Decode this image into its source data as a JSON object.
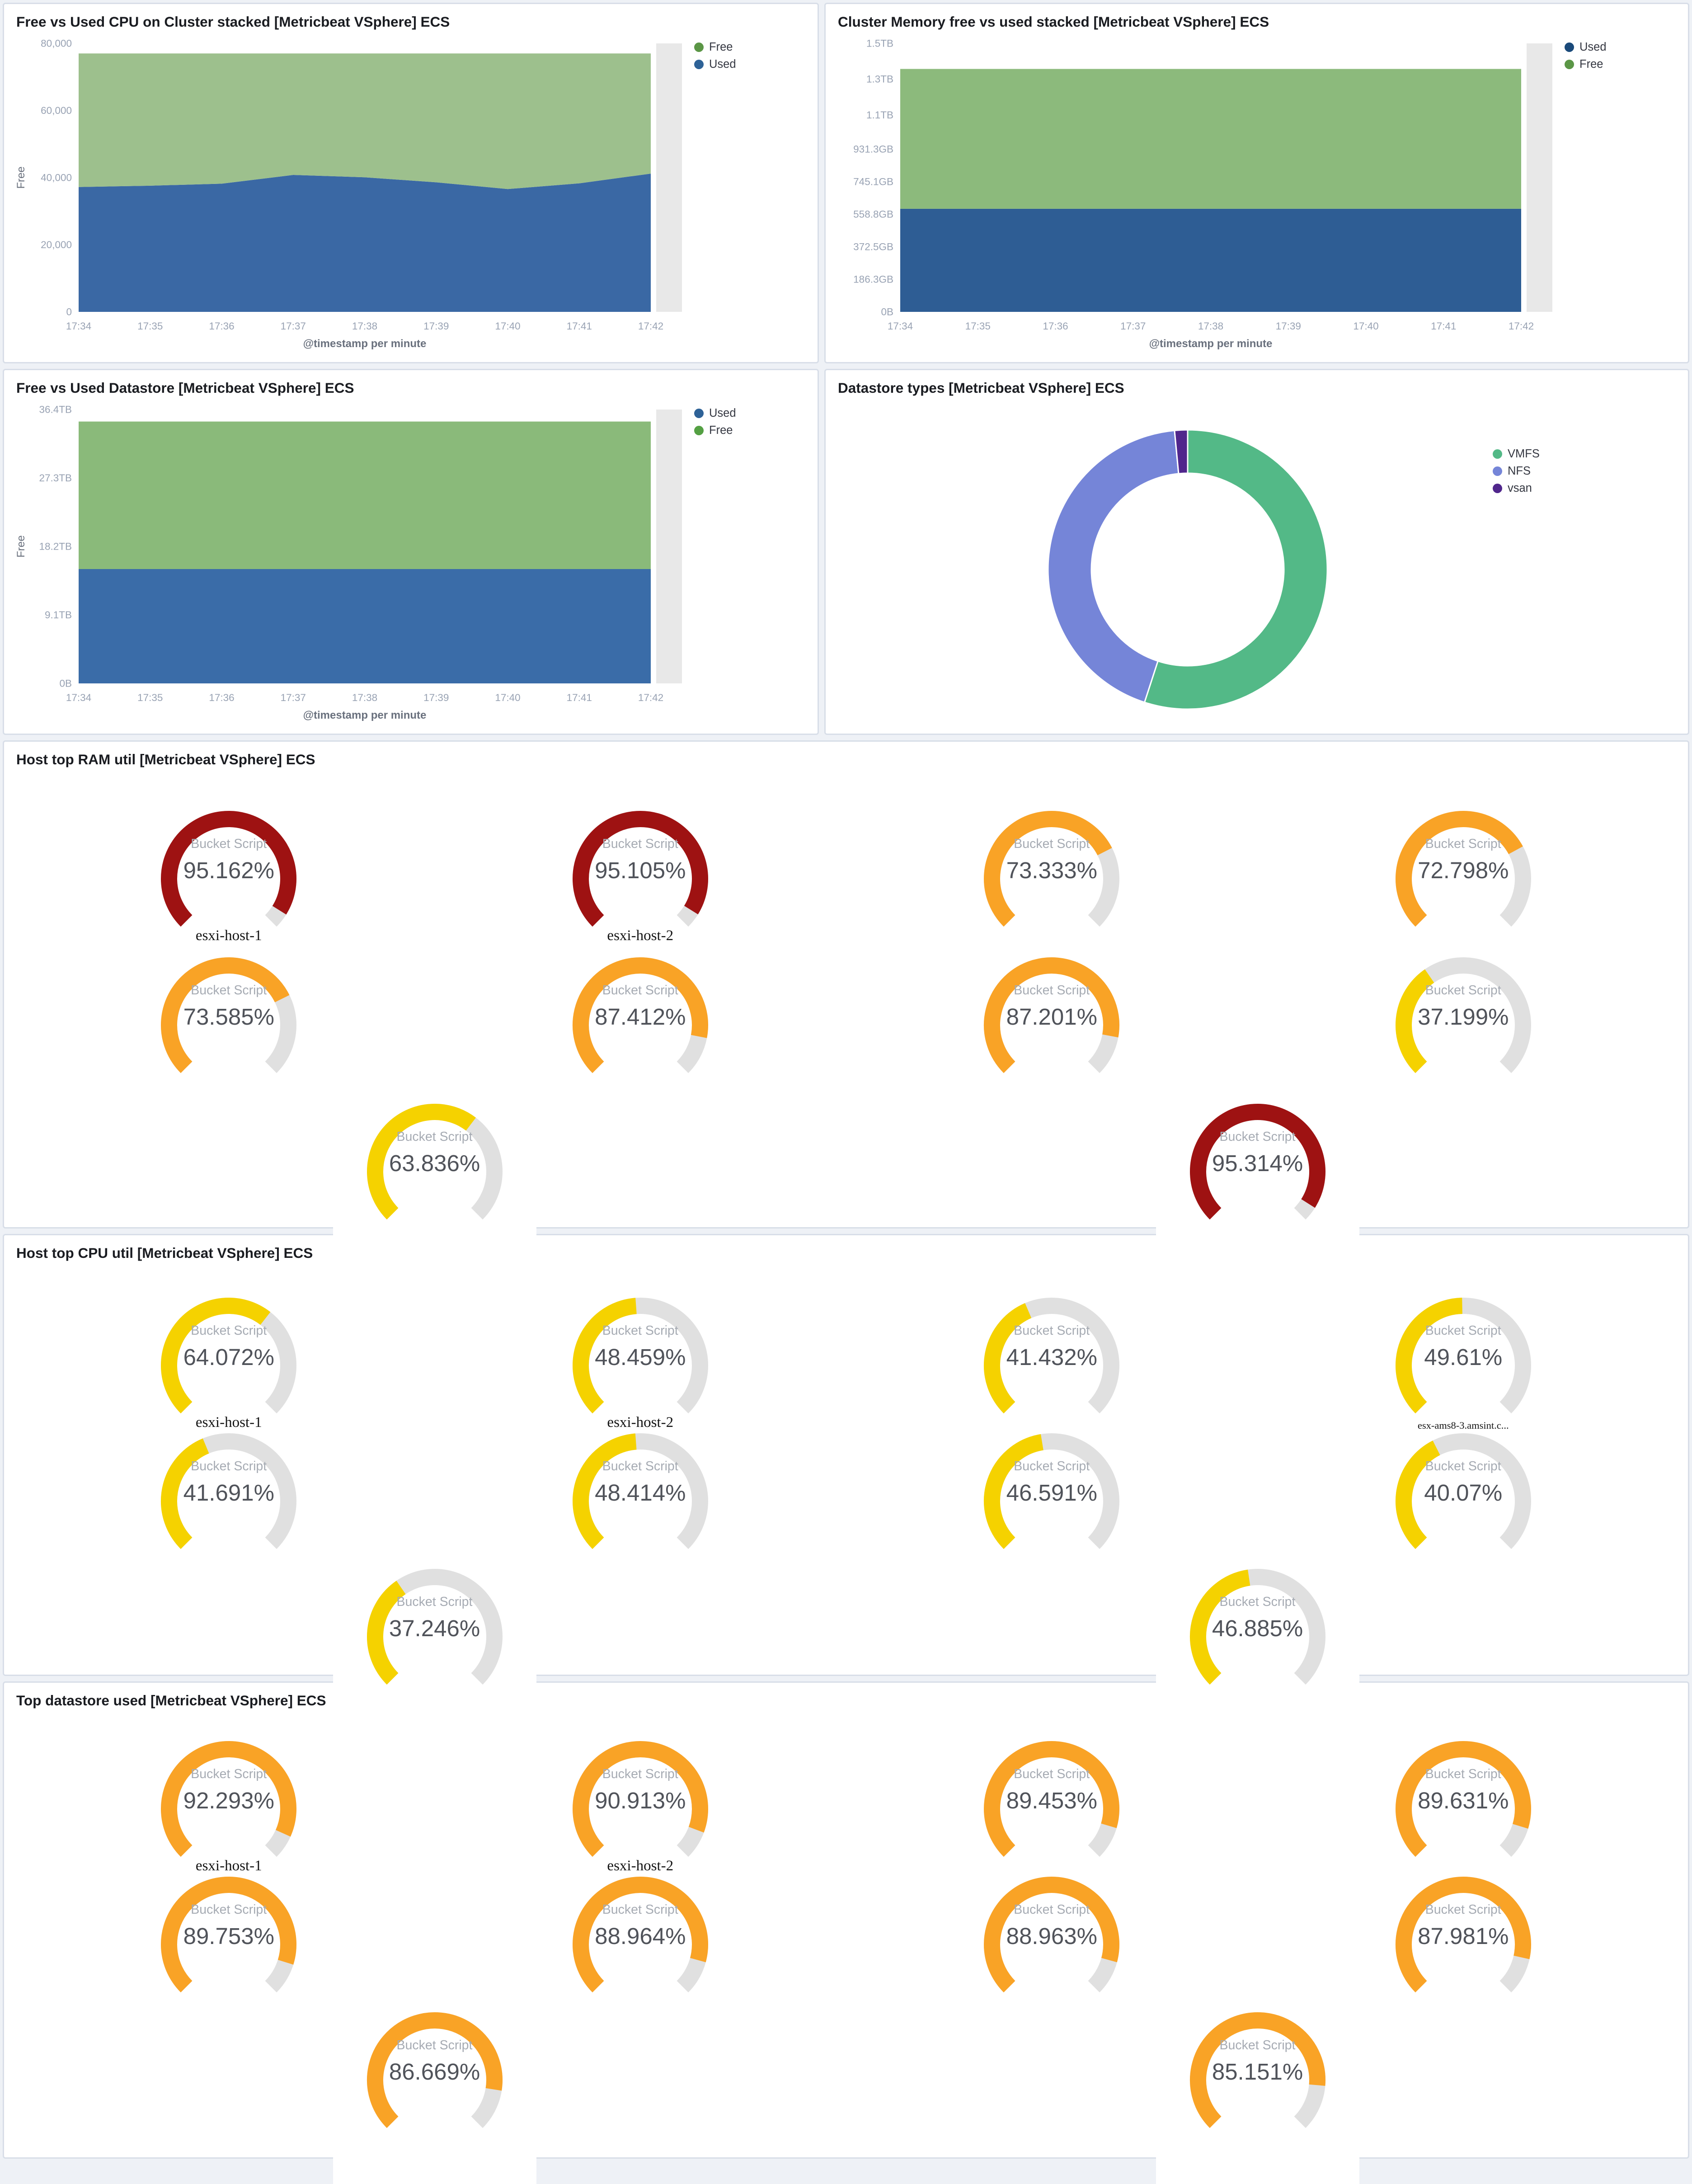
{
  "dashboard": {
    "background": "#eef1f6",
    "panel_border": "#d8dee8"
  },
  "gauge_palette": {
    "red": "#9e1212",
    "orange": "#f9a326",
    "yellow": "#f5d200",
    "track": "#e0e0e0"
  },
  "chart_data": [
    {
      "type": "area",
      "stacked": true,
      "title": "Free vs Used CPU on Cluster stacked [Metricbeat VSphere] ECS",
      "x": [
        "17:34",
        "17:35",
        "17:36",
        "17:37",
        "17:38",
        "17:39",
        "17:40",
        "17:41",
        "17:42"
      ],
      "xlabel": "@timestamp per minute",
      "ylabel": "Free",
      "ylim": [
        0,
        80000
      ],
      "yticks": [
        {
          "v": 0,
          "label": "0"
        },
        {
          "v": 20000,
          "label": "20,000"
        },
        {
          "v": 40000,
          "label": "40,000"
        },
        {
          "v": 60000,
          "label": "60,000"
        },
        {
          "v": 80000,
          "label": "80,000"
        }
      ],
      "series": [
        {
          "name": "Used",
          "color": "#3a68a4",
          "legend_color": "#2e6297",
          "values": [
            37200,
            37600,
            38200,
            40800,
            40100,
            38600,
            36600,
            38300,
            41200
          ]
        },
        {
          "name": "Free",
          "color": "#9dc08d",
          "legend_color": "#5b9646",
          "values": [
            39800,
            39400,
            38800,
            36200,
            36900,
            38400,
            40400,
            38700,
            35800
          ]
        }
      ],
      "legend_order": [
        "Free",
        "Used"
      ],
      "partial_bucket_color": "#e8e8e8"
    },
    {
      "type": "area",
      "stacked": true,
      "title": "Cluster Memory free vs used stacked [Metricbeat VSphere] ECS",
      "x": [
        "17:34",
        "17:35",
        "17:36",
        "17:37",
        "17:38",
        "17:39",
        "17:40",
        "17:41",
        "17:42"
      ],
      "xlabel": "@timestamp per minute",
      "ylabel": "",
      "ylim": [
        0,
        1536
      ],
      "unit": "GB",
      "yticks": [
        {
          "v": 0,
          "label": "0B"
        },
        {
          "v": 186.3,
          "label": "186.3GB"
        },
        {
          "v": 372.5,
          "label": "372.5GB"
        },
        {
          "v": 558.8,
          "label": "558.8GB"
        },
        {
          "v": 745.1,
          "label": "745.1GB"
        },
        {
          "v": 931.3,
          "label": "931.3GB"
        },
        {
          "v": 1126.4,
          "label": "1.1TB"
        },
        {
          "v": 1331.2,
          "label": "1.3TB"
        },
        {
          "v": 1536,
          "label": "1.5TB"
        }
      ],
      "series": [
        {
          "name": "Used",
          "color": "#2e5d94",
          "legend_color": "#1a4a7a",
          "values": [
            590,
            590,
            590,
            590,
            590,
            590,
            590,
            590,
            590
          ]
        },
        {
          "name": "Free",
          "color": "#8cba7c",
          "legend_color": "#5b9646",
          "values": [
            800,
            800,
            800,
            800,
            800,
            800,
            800,
            800,
            800
          ]
        }
      ],
      "legend_order": [
        "Used",
        "Free"
      ],
      "partial_bucket_color": "#e8e8e8"
    },
    {
      "type": "area",
      "stacked": true,
      "title": "Free vs Used Datastore [Metricbeat VSphere] ECS",
      "x": [
        "17:34",
        "17:35",
        "17:36",
        "17:37",
        "17:38",
        "17:39",
        "17:40",
        "17:41",
        "17:42"
      ],
      "xlabel": "@timestamp per minute",
      "ylabel": "Free",
      "ylim": [
        0,
        36.4
      ],
      "unit": "TB",
      "yticks": [
        {
          "v": 0,
          "label": "0B"
        },
        {
          "v": 9.1,
          "label": "9.1TB"
        },
        {
          "v": 18.2,
          "label": "18.2TB"
        },
        {
          "v": 27.3,
          "label": "27.3TB"
        },
        {
          "v": 36.4,
          "label": "36.4TB"
        }
      ],
      "series": [
        {
          "name": "Used",
          "color": "#3a6ca8",
          "legend_color": "#2e6297",
          "values": [
            15.2,
            15.2,
            15.2,
            15.2,
            15.2,
            15.2,
            15.2,
            15.2,
            15.2
          ]
        },
        {
          "name": "Free",
          "color": "#8aba7a",
          "legend_color": "#54a043",
          "values": [
            19.6,
            19.6,
            19.6,
            19.6,
            19.6,
            19.6,
            19.6,
            19.6,
            19.6
          ]
        }
      ],
      "legend_order": [
        "Used",
        "Free"
      ],
      "partial_bucket_color": "#e8e8e8"
    },
    {
      "type": "pie",
      "donut": true,
      "title": "Datastore types [Metricbeat VSphere] ECS",
      "labels": [
        "VMFS",
        "NFS",
        "vsan"
      ],
      "values_pct": [
        55,
        43.5,
        1.5
      ],
      "colors": [
        "#53b987",
        "#7585d8",
        "#50268c"
      ],
      "legend_position": "right"
    },
    {
      "type": "gauge",
      "title": "Host top RAM util [Metricbeat VSphere] ECS",
      "metric_label": "Bucket Script",
      "rows": [
        [
          {
            "display": "95.162%",
            "pct": 95.162,
            "level": "red",
            "label": "esxi-host-1"
          },
          {
            "display": "95.105%",
            "pct": 95.105,
            "level": "red",
            "label": "esxi-host-2"
          },
          {
            "display": "73.333%",
            "pct": 73.333,
            "level": "orange",
            "label": ""
          },
          {
            "display": "72.798%",
            "pct": 72.798,
            "level": "orange",
            "label": ""
          }
        ],
        [
          {
            "display": "73.585%",
            "pct": 73.585,
            "level": "orange",
            "label": ""
          },
          {
            "display": "87.412%",
            "pct": 87.412,
            "level": "orange",
            "label": ""
          },
          {
            "display": "87.201%",
            "pct": 87.201,
            "level": "orange",
            "label": ""
          },
          {
            "display": "37.199%",
            "pct": 37.199,
            "level": "yellow",
            "label": ""
          }
        ],
        [
          {
            "display": "63.836%",
            "pct": 63.836,
            "level": "yellow",
            "label": ""
          },
          {
            "display": "95.314%",
            "pct": 95.314,
            "level": "red",
            "label": ""
          }
        ]
      ]
    },
    {
      "type": "gauge",
      "title": "Host top CPU util [Metricbeat VSphere] ECS",
      "metric_label": "Bucket Script",
      "rows": [
        [
          {
            "display": "64.072%",
            "pct": 64.072,
            "level": "yellow",
            "label": "esxi-host-1"
          },
          {
            "display": "48.459%",
            "pct": 48.459,
            "level": "yellow",
            "label": "esxi-host-2"
          },
          {
            "display": "41.432%",
            "pct": 41.432,
            "level": "yellow",
            "label": ""
          },
          {
            "display": "49.61%",
            "pct": 49.61,
            "level": "yellow",
            "label": "esx-ams8-3.amsint.c...",
            "small": true
          }
        ],
        [
          {
            "display": "41.691%",
            "pct": 41.691,
            "level": "yellow",
            "label": ""
          },
          {
            "display": "48.414%",
            "pct": 48.414,
            "level": "yellow",
            "label": ""
          },
          {
            "display": "46.591%",
            "pct": 46.591,
            "level": "yellow",
            "label": ""
          },
          {
            "display": "40.07%",
            "pct": 40.07,
            "level": "yellow",
            "label": ""
          }
        ],
        [
          {
            "display": "37.246%",
            "pct": 37.246,
            "level": "yellow",
            "label": ""
          },
          {
            "display": "46.885%",
            "pct": 46.885,
            "level": "yellow",
            "label": ""
          }
        ]
      ]
    },
    {
      "type": "gauge",
      "title": "Top datastore used [Metricbeat VSphere] ECS",
      "metric_label": "Bucket Script",
      "rows": [
        [
          {
            "display": "92.293%",
            "pct": 92.293,
            "level": "orange",
            "label": "esxi-host-1"
          },
          {
            "display": "90.913%",
            "pct": 90.913,
            "level": "orange",
            "label": "esxi-host-2"
          },
          {
            "display": "89.453%",
            "pct": 89.453,
            "level": "orange",
            "label": ""
          },
          {
            "display": "89.631%",
            "pct": 89.631,
            "level": "orange",
            "label": ""
          }
        ],
        [
          {
            "display": "89.753%",
            "pct": 89.753,
            "level": "orange",
            "label": ""
          },
          {
            "display": "88.964%",
            "pct": 88.964,
            "level": "orange",
            "label": ""
          },
          {
            "display": "88.963%",
            "pct": 88.963,
            "level": "orange",
            "label": ""
          },
          {
            "display": "87.981%",
            "pct": 87.981,
            "level": "orange",
            "label": ""
          }
        ],
        [
          {
            "display": "86.669%",
            "pct": 86.669,
            "level": "orange",
            "label": ""
          },
          {
            "display": "85.151%",
            "pct": 85.151,
            "level": "orange",
            "label": ""
          }
        ]
      ]
    }
  ]
}
